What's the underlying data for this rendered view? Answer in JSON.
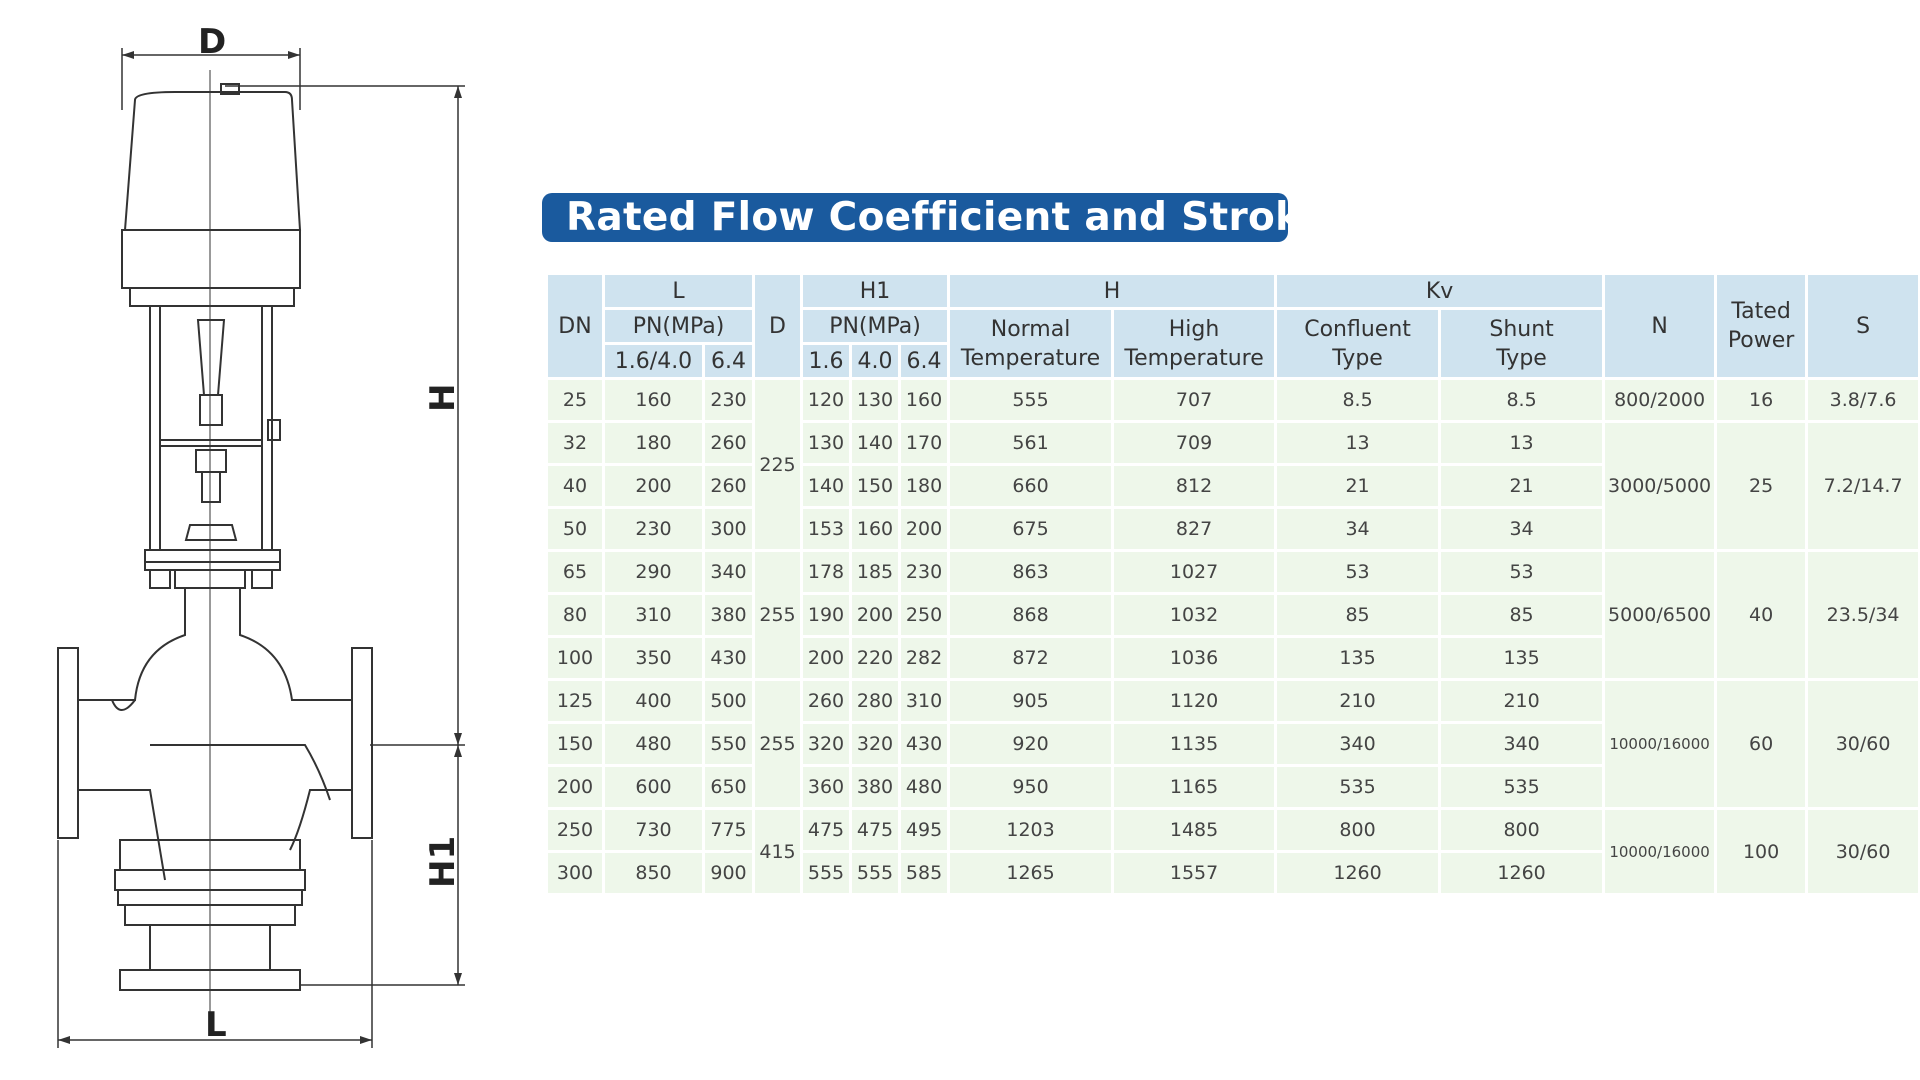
{
  "drawing": {
    "dim_d": "D",
    "dim_h": "H",
    "dim_h1": "H1",
    "dim_l": "L"
  },
  "title": "Rated Flow Coefficient and Stroke",
  "table": {
    "headers": {
      "dn": "DN",
      "l": "L",
      "l_pn": "PN(MPa)",
      "l_pn_a": "1.6/4.0",
      "l_pn_b": "6.4",
      "d": "D",
      "h1": "H1",
      "h1_pn": "PN(MPa)",
      "h1_a": "1.6",
      "h1_b": "4.0",
      "h1_c": "6.4",
      "h": "H",
      "h_normal_1": "Normal",
      "h_normal_2": "Temperature",
      "h_high_1": "High",
      "h_high_2": "Temperature",
      "kv": "Kv",
      "kv_conf_1": "Confluent",
      "kv_conf_2": "Type",
      "kv_shunt_1": "Shunt",
      "kv_shunt_2": "Type",
      "n": "N",
      "power_1": "Tated",
      "power_2": "Power",
      "s": "S"
    },
    "rows": [
      {
        "dn": "25",
        "l_a": "160",
        "l_b": "230",
        "h1_a": "120",
        "h1_b": "130",
        "h1_c": "160",
        "h_n": "555",
        "h_h": "707",
        "kv_c": "8.5",
        "kv_s": "8.5"
      },
      {
        "dn": "32",
        "l_a": "180",
        "l_b": "260",
        "h1_a": "130",
        "h1_b": "140",
        "h1_c": "170",
        "h_n": "561",
        "h_h": "709",
        "kv_c": "13",
        "kv_s": "13"
      },
      {
        "dn": "40",
        "l_a": "200",
        "l_b": "260",
        "h1_a": "140",
        "h1_b": "150",
        "h1_c": "180",
        "h_n": "660",
        "h_h": "812",
        "kv_c": "21",
        "kv_s": "21"
      },
      {
        "dn": "50",
        "l_a": "230",
        "l_b": "300",
        "h1_a": "153",
        "h1_b": "160",
        "h1_c": "200",
        "h_n": "675",
        "h_h": "827",
        "kv_c": "34",
        "kv_s": "34"
      },
      {
        "dn": "65",
        "l_a": "290",
        "l_b": "340",
        "h1_a": "178",
        "h1_b": "185",
        "h1_c": "230",
        "h_n": "863",
        "h_h": "1027",
        "kv_c": "53",
        "kv_s": "53"
      },
      {
        "dn": "80",
        "l_a": "310",
        "l_b": "380",
        "h1_a": "190",
        "h1_b": "200",
        "h1_c": "250",
        "h_n": "868",
        "h_h": "1032",
        "kv_c": "85",
        "kv_s": "85"
      },
      {
        "dn": "100",
        "l_a": "350",
        "l_b": "430",
        "h1_a": "200",
        "h1_b": "220",
        "h1_c": "282",
        "h_n": "872",
        "h_h": "1036",
        "kv_c": "135",
        "kv_s": "135"
      },
      {
        "dn": "125",
        "l_a": "400",
        "l_b": "500",
        "h1_a": "260",
        "h1_b": "280",
        "h1_c": "310",
        "h_n": "905",
        "h_h": "1120",
        "kv_c": "210",
        "kv_s": "210"
      },
      {
        "dn": "150",
        "l_a": "480",
        "l_b": "550",
        "h1_a": "320",
        "h1_b": "320",
        "h1_c": "430",
        "h_n": "920",
        "h_h": "1135",
        "kv_c": "340",
        "kv_s": "340"
      },
      {
        "dn": "200",
        "l_a": "600",
        "l_b": "650",
        "h1_a": "360",
        "h1_b": "380",
        "h1_c": "480",
        "h_n": "950",
        "h_h": "1165",
        "kv_c": "535",
        "kv_s": "535"
      },
      {
        "dn": "250",
        "l_a": "730",
        "l_b": "775",
        "h1_a": "475",
        "h1_b": "475",
        "h1_c": "495",
        "h_n": "1203",
        "h_h": "1485",
        "kv_c": "800",
        "kv_s": "800"
      },
      {
        "dn": "300",
        "l_a": "850",
        "l_b": "900",
        "h1_a": "555",
        "h1_b": "555",
        "h1_c": "585",
        "h_n": "1265",
        "h_h": "1557",
        "kv_c": "1260",
        "kv_s": "1260"
      }
    ],
    "d_groups": [
      "225",
      "255",
      "255",
      "415"
    ],
    "n_groups": [
      "800/2000",
      "3000/5000",
      "5000/6500",
      "10000/16000",
      "10000/16000"
    ],
    "power_groups": [
      "16",
      "25",
      "40",
      "60",
      "100"
    ],
    "s_groups": [
      "3.8/7.6",
      "7.2/14.7",
      "23.5/34",
      "30/60",
      "30/60"
    ]
  }
}
